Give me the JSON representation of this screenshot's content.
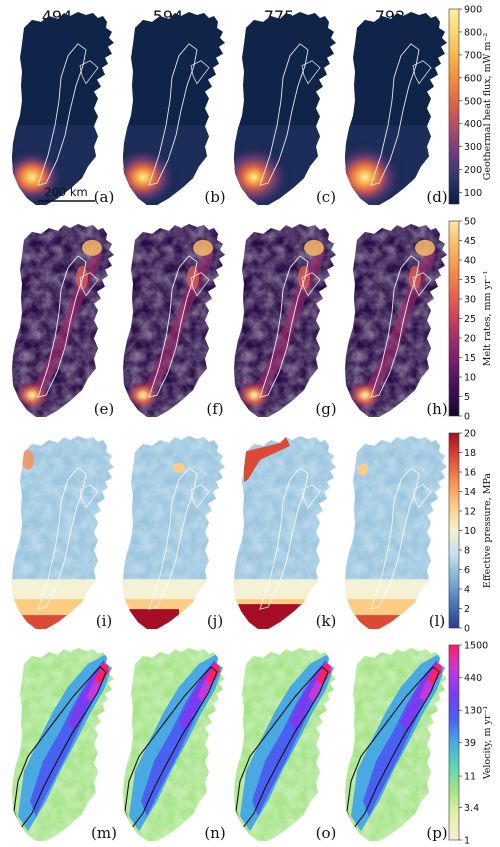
{
  "chart_data": [
    {
      "type": "heatmap",
      "row": "geothermal",
      "column_titles": [
        "494",
        "594",
        "775",
        "792"
      ],
      "panel_labels": [
        "(a)",
        "(b)",
        "(c)",
        "(d)"
      ],
      "scale_bar_label": "200 km",
      "colorbar": {
        "label": "Geothermal heat flux, mW m⁻²",
        "ticks": [
          "100",
          "200",
          "300",
          "400",
          "500",
          "600",
          "700",
          "800",
          "900"
        ],
        "range": [
          50,
          900
        ],
        "colors": [
          "#0b1d3f",
          "#2c3566",
          "#6a3c7d",
          "#a64a6c",
          "#d8604a",
          "#f0883a",
          "#f7b24a",
          "#fbd76a",
          "#fdf0a0"
        ]
      },
      "hotspot_peak": [
        900,
        800,
        700,
        850
      ]
    },
    {
      "type": "heatmap",
      "row": "melt",
      "panel_labels": [
        "(e)",
        "(f)",
        "(g)",
        "(h)"
      ],
      "colorbar": {
        "label": "Melt rates, mm yr⁻¹",
        "ticks": [
          "0",
          "5",
          "10",
          "15",
          "20",
          "25",
          "30",
          "35",
          "40",
          "45",
          "50"
        ],
        "range": [
          0,
          50
        ],
        "colors": [
          "#120a25",
          "#3b0f55",
          "#6a1a6b",
          "#9a2a6a",
          "#c8415e",
          "#e8654f",
          "#f58f4d",
          "#fbbb6a",
          "#fde6a5"
        ]
      }
    },
    {
      "type": "heatmap",
      "row": "pressure",
      "panel_labels": [
        "(i)",
        "(j)",
        "(k)",
        "(l)"
      ],
      "colorbar": {
        "label": "Effective pressure, MPa",
        "ticks": [
          "0",
          "2",
          "4",
          "6",
          "8",
          "10",
          "12",
          "14",
          "16",
          "18",
          "20"
        ],
        "range": [
          0,
          20
        ],
        "colors": [
          "#2b3d8f",
          "#4a76b6",
          "#7fb0d6",
          "#c4e0ee",
          "#f5f1d4",
          "#fccc84",
          "#f78f52",
          "#dc4a35",
          "#a50e25"
        ]
      }
    },
    {
      "type": "heatmap",
      "row": "velocity",
      "panel_labels": [
        "(m)",
        "(n)",
        "(o)",
        "(p)"
      ],
      "colorbar": {
        "label": "Velocity, m yr⁻¹",
        "ticks": [
          "1",
          "3.4",
          "11",
          "39",
          "130",
          "440",
          "1500"
        ],
        "range": [
          1,
          1500
        ],
        "log_scale": true,
        "colors": [
          "#fae8e0",
          "#e9f0a8",
          "#a7e58a",
          "#5cd6b4",
          "#49a9e2",
          "#4a60f0",
          "#7a3cf0",
          "#c23ad8",
          "#ff1f66"
        ]
      }
    }
  ]
}
